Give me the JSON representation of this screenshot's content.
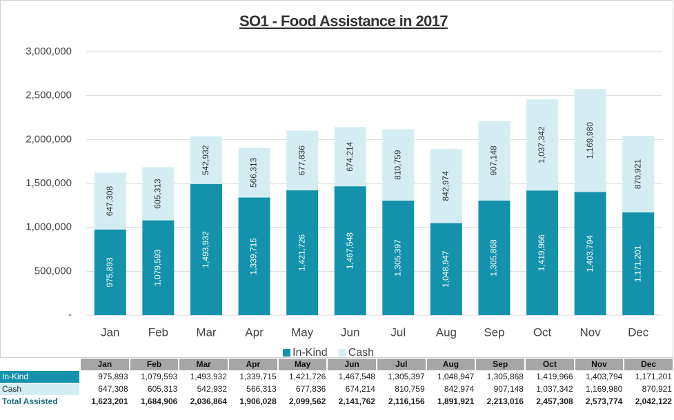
{
  "chart_data": {
    "type": "stacked_bar",
    "title": "SO1 - Food Assistance in 2017",
    "categories": [
      "Jan",
      "Feb",
      "Mar",
      "Apr",
      "May",
      "Jun",
      "Jul",
      "Aug",
      "Sep",
      "Oct",
      "Nov",
      "Dec"
    ],
    "series": [
      {
        "name": "In-Kind",
        "color": "#1592ab",
        "label_color": "#ffffff",
        "values": [
          975893,
          1079593,
          1493932,
          1339715,
          1421726,
          1467548,
          1305397,
          1048947,
          1305868,
          1419966,
          1403794,
          1171201
        ],
        "value_labels": [
          "975,893",
          "1,079,593",
          "1,493,932",
          "1,339,715",
          "1,421,726",
          "1,467,548",
          "1,305,397",
          "1,048,947",
          "1,305,868",
          "1,419,966",
          "1,403,794",
          "1,171,201"
        ]
      },
      {
        "name": "Cash",
        "color": "#d3edf2",
        "label_color": "#333333",
        "values": [
          647308,
          605313,
          542932,
          566313,
          677836,
          674214,
          810759,
          842974,
          907148,
          1037342,
          1169980,
          870921
        ],
        "value_labels": [
          "647,308",
          "605,313",
          "542,932",
          "566,313",
          "677,836",
          "674,214",
          "810,759",
          "842,974",
          "907,148",
          "1,037,342",
          "1,169,980",
          "870,921"
        ]
      }
    ],
    "ylim": [
      0,
      3000000
    ],
    "yticks": [
      {
        "value": 0,
        "label": "-"
      },
      {
        "value": 500000,
        "label": "500,000"
      },
      {
        "value": 1000000,
        "label": "1,000,000"
      },
      {
        "value": 1500000,
        "label": "1,500,000"
      },
      {
        "value": 2000000,
        "label": "2,000,000"
      },
      {
        "value": 2500000,
        "label": "2,500,000"
      },
      {
        "value": 3000000,
        "label": "3,000,000"
      }
    ],
    "grid": true,
    "legend": "bottom"
  },
  "table": {
    "total_label": "Total Assisted",
    "totals": [
      "1,623,201",
      "1,684,906",
      "2,036,864",
      "1,906,028",
      "2,099,562",
      "2,141,762",
      "2,116,156",
      "1,891,921",
      "2,213,016",
      "2,457,308",
      "2,573,774",
      "2,042,122"
    ]
  }
}
